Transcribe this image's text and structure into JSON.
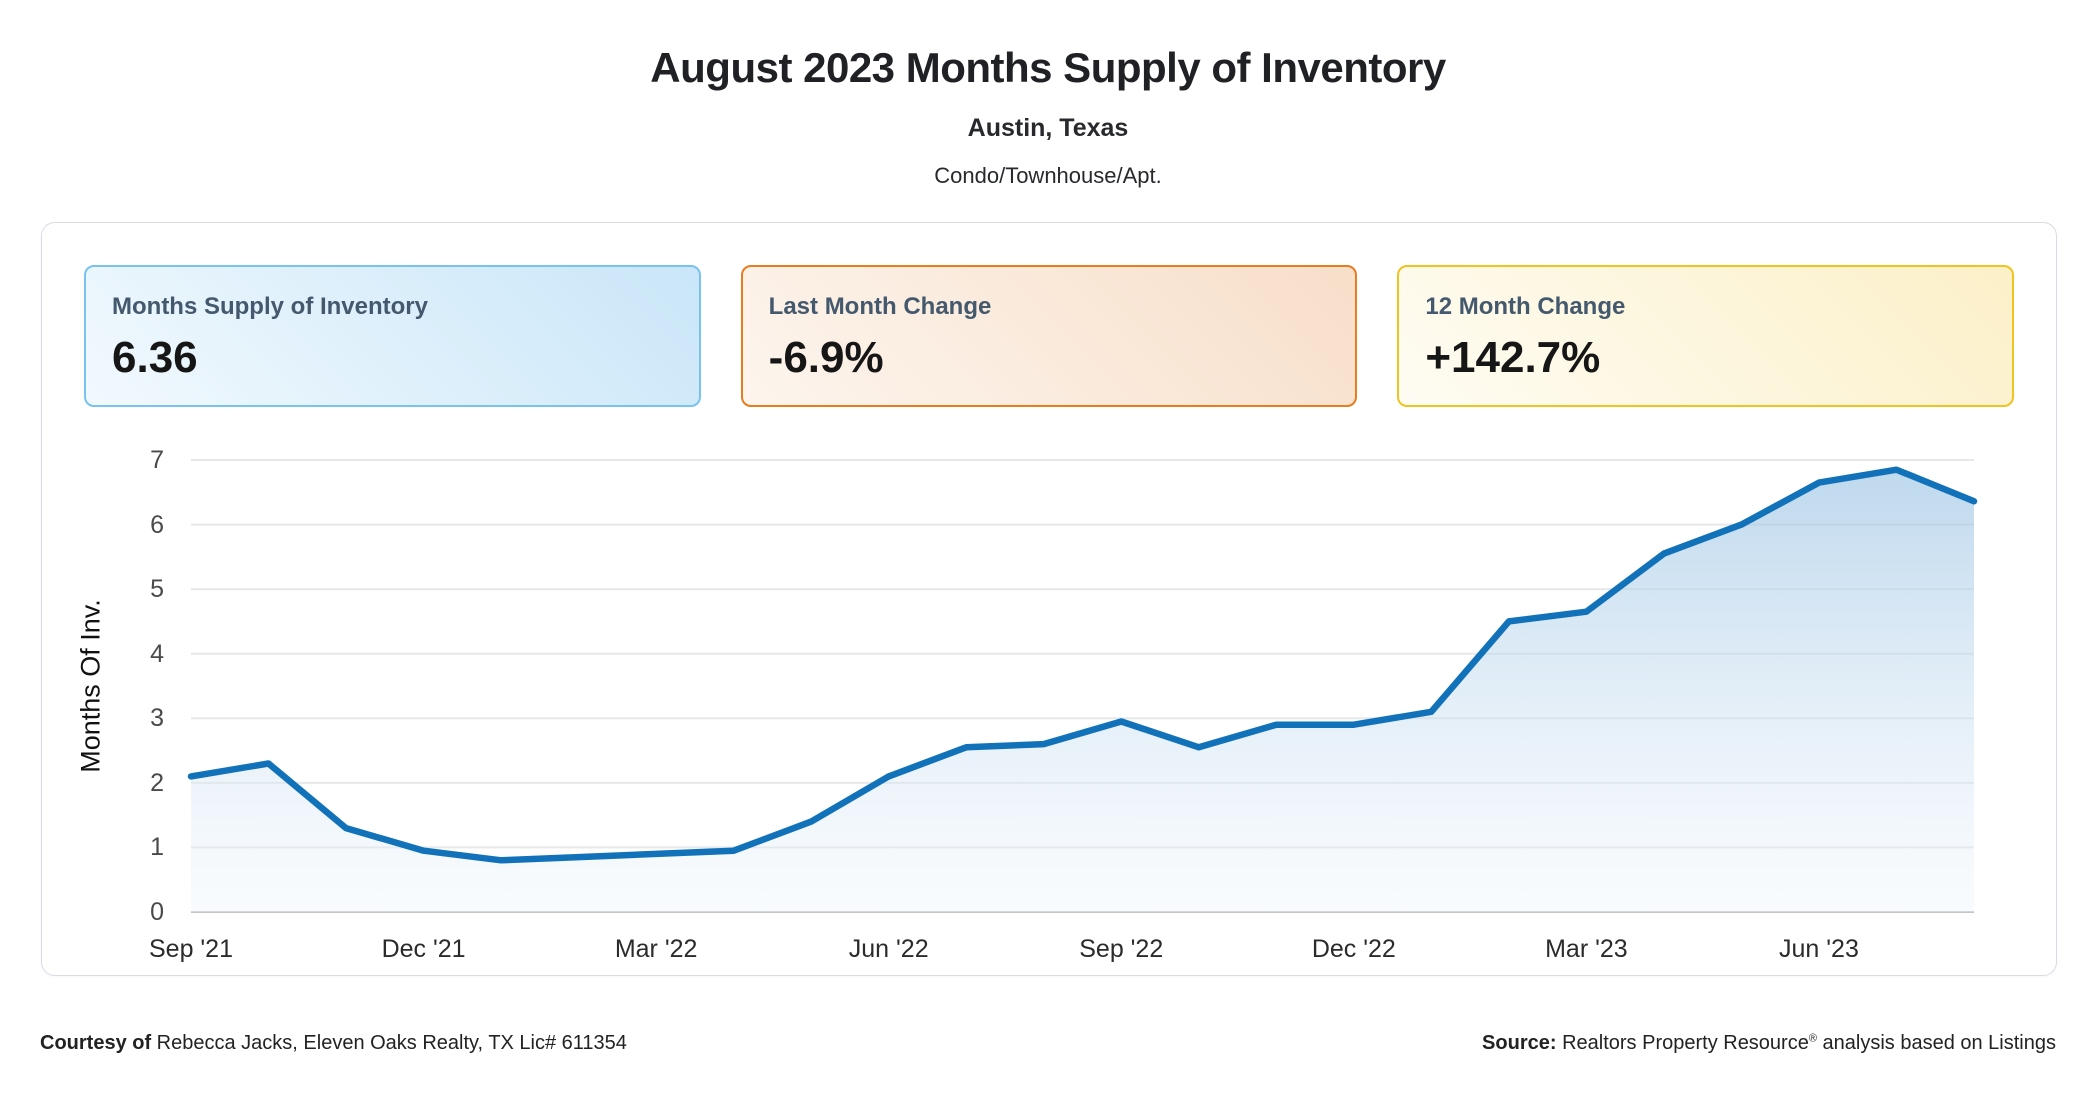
{
  "header": {
    "title": "August 2023 Months Supply of Inventory",
    "subtitle": "Austin, Texas",
    "property_type": "Condo/Townhouse/Apt."
  },
  "cards": [
    {
      "label": "Months Supply of Inventory",
      "value": "6.36",
      "colors": {
        "border": "#79c3ef",
        "bg_from": "#f2f9fe",
        "bg_to": "#c9e6f8"
      }
    },
    {
      "label": "Last Month Change",
      "value": "-6.9%",
      "colors": {
        "border": "#e87d1e",
        "bg_from": "#fdf5ee",
        "bg_to": "#f7dfc9"
      }
    },
    {
      "label": "12 Month Change",
      "value": "+142.7%",
      "colors": {
        "border": "#f0c41f",
        "bg_from": "#fefcf3",
        "bg_to": "#fcf0c8"
      }
    }
  ],
  "chart_data": {
    "type": "area",
    "title": "",
    "xlabel": "",
    "ylabel": "Months Of Inv.",
    "ylim": [
      0,
      7
    ],
    "y_ticks": [
      0,
      1,
      2,
      3,
      4,
      5,
      6,
      7
    ],
    "grid": "horizontal",
    "legend": "none",
    "categories": [
      "Sep '21",
      "Oct '21",
      "Nov '21",
      "Dec '21",
      "Jan '22",
      "Feb '22",
      "Mar '22",
      "Apr '22",
      "May '22",
      "Jun '22",
      "Jul '22",
      "Aug '22",
      "Sep '22",
      "Oct '22",
      "Nov '22",
      "Dec '22",
      "Jan '23",
      "Feb '23",
      "Mar '23",
      "Apr '23",
      "May '23",
      "Jun '23",
      "Jul '23",
      "Aug '23"
    ],
    "values": [
      2.1,
      2.3,
      1.3,
      0.95,
      0.8,
      0.85,
      0.9,
      0.95,
      1.4,
      2.1,
      2.55,
      2.6,
      2.95,
      2.55,
      2.9,
      2.9,
      3.1,
      4.5,
      4.65,
      5.55,
      6.0,
      6.65,
      6.85,
      6.36
    ],
    "x_tick_indices": [
      0,
      3,
      6,
      9,
      12,
      15,
      18,
      21
    ],
    "x_tick_labels": [
      "Sep '21",
      "Dec '21",
      "Mar '22",
      "Jun '22",
      "Sep '22",
      "Dec '22",
      "Mar '23",
      "Jun '23"
    ],
    "colors": {
      "line": "#1172ba",
      "area_top": "#9cc4e4",
      "area_bottom": "#eef5fb",
      "grid": "#e8e8e8",
      "axis_zero": "#c2c6cc"
    }
  },
  "footer": {
    "courtesy_label": "Courtesy of",
    "courtesy_text": " Rebecca Jacks, Eleven Oaks Realty, TX Lic# 611354",
    "source_label": "Source:",
    "source_main": " Realtors Property Resource",
    "source_reg": "®",
    "source_tail": " analysis based on Listings"
  }
}
